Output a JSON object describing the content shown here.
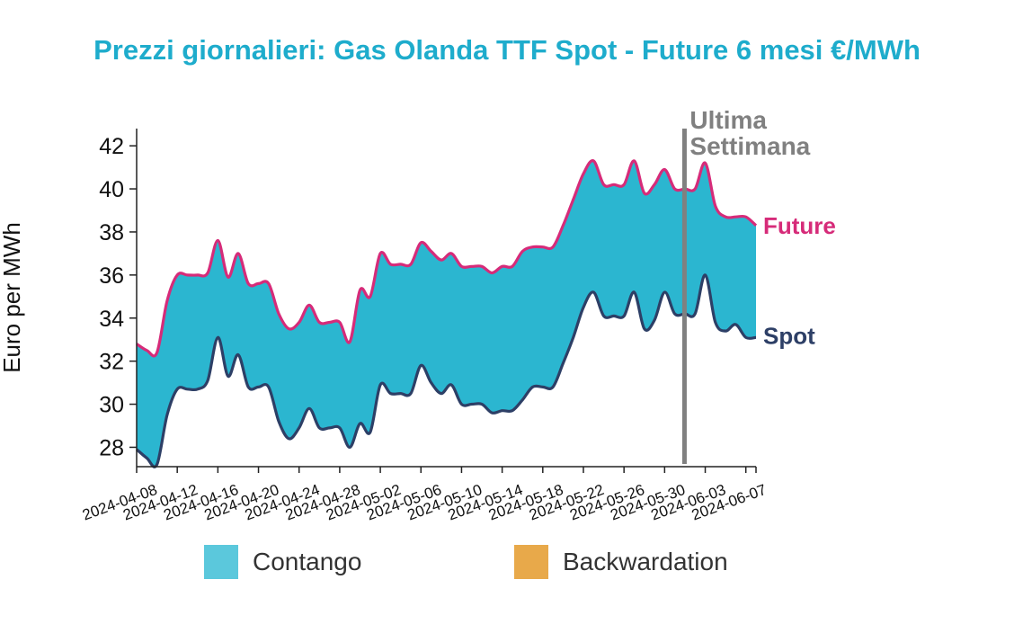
{
  "title": "Prezzi giornalieri: Gas Olanda TTF Spot - Future 6 mesi €/MWh",
  "chart_data": {
    "type": "area",
    "title": "Prezzi giornalieri: Gas Olanda TTF Spot - Future 6 mesi €/MWh",
    "xlabel": "",
    "ylabel": "Euro per MWh",
    "ylim": [
      27.1,
      42.8
    ],
    "xlim": [
      "2024-04-08",
      "2024-06-08"
    ],
    "yticks": [
      28,
      30,
      32,
      34,
      36,
      38,
      40,
      42
    ],
    "xticks": [
      "2024-04-08",
      "2024-04-12",
      "2024-04-16",
      "2024-04-20",
      "2024-04-24",
      "2024-04-28",
      "2024-05-02",
      "2024-05-06",
      "2024-05-10",
      "2024-05-14",
      "2024-05-18",
      "2024-05-22",
      "2024-05-26",
      "2024-05-30",
      "2024-06-03",
      "2024-06-07"
    ],
    "grid": false,
    "legend_placement": "bottom",
    "legend": [
      {
        "label": "Contango",
        "color": "#5bc8dc"
      },
      {
        "label": "Backwardation",
        "color": "#e8a94a"
      }
    ],
    "fill_color": "#2bb6d0",
    "series": [
      {
        "name": "Future",
        "color": "#d62b79",
        "x": [
          "2024-04-08",
          "2024-04-09",
          "2024-04-10",
          "2024-04-11",
          "2024-04-12",
          "2024-04-13",
          "2024-04-14",
          "2024-04-15",
          "2024-04-16",
          "2024-04-17",
          "2024-04-18",
          "2024-04-19",
          "2024-04-20",
          "2024-04-21",
          "2024-04-22",
          "2024-04-23",
          "2024-04-24",
          "2024-04-25",
          "2024-04-26",
          "2024-04-27",
          "2024-04-28",
          "2024-04-29",
          "2024-04-30",
          "2024-05-01",
          "2024-05-02",
          "2024-05-03",
          "2024-05-04",
          "2024-05-05",
          "2024-05-06",
          "2024-05-07",
          "2024-05-08",
          "2024-05-09",
          "2024-05-10",
          "2024-05-11",
          "2024-05-12",
          "2024-05-13",
          "2024-05-14",
          "2024-05-15",
          "2024-05-16",
          "2024-05-17",
          "2024-05-18",
          "2024-05-19",
          "2024-05-20",
          "2024-05-21",
          "2024-05-22",
          "2024-05-23",
          "2024-05-24",
          "2024-05-25",
          "2024-05-26",
          "2024-05-27",
          "2024-05-28",
          "2024-05-29",
          "2024-05-30",
          "2024-05-31",
          "2024-06-01",
          "2024-06-02",
          "2024-06-03",
          "2024-06-04",
          "2024-06-05",
          "2024-06-06",
          "2024-06-07",
          "2024-06-08"
        ],
        "values": [
          32.8,
          32.5,
          32.4,
          34.8,
          36.0,
          36.0,
          36.0,
          36.1,
          37.6,
          35.9,
          37.0,
          35.6,
          35.6,
          35.6,
          34.2,
          33.5,
          33.8,
          34.6,
          33.8,
          33.8,
          33.8,
          32.9,
          35.3,
          35.0,
          37.0,
          36.5,
          36.5,
          36.5,
          37.5,
          37.1,
          36.7,
          37.0,
          36.4,
          36.4,
          36.4,
          36.1,
          36.4,
          36.4,
          37.1,
          37.3,
          37.3,
          37.3,
          38.3,
          39.5,
          40.7,
          41.3,
          40.2,
          40.2,
          40.2,
          41.3,
          39.8,
          40.2,
          40.9,
          40.0,
          40.0,
          40.0,
          41.2,
          39.2,
          38.7,
          38.7,
          38.7,
          38.3
        ]
      },
      {
        "name": "Spot",
        "color": "#2d3f66",
        "x": [
          "2024-04-08",
          "2024-04-09",
          "2024-04-10",
          "2024-04-11",
          "2024-04-12",
          "2024-04-13",
          "2024-04-14",
          "2024-04-15",
          "2024-04-16",
          "2024-04-17",
          "2024-04-18",
          "2024-04-19",
          "2024-04-20",
          "2024-04-21",
          "2024-04-22",
          "2024-04-23",
          "2024-04-24",
          "2024-04-25",
          "2024-04-26",
          "2024-04-27",
          "2024-04-28",
          "2024-04-29",
          "2024-04-30",
          "2024-05-01",
          "2024-05-02",
          "2024-05-03",
          "2024-05-04",
          "2024-05-05",
          "2024-05-06",
          "2024-05-07",
          "2024-05-08",
          "2024-05-09",
          "2024-05-10",
          "2024-05-11",
          "2024-05-12",
          "2024-05-13",
          "2024-05-14",
          "2024-05-15",
          "2024-05-16",
          "2024-05-17",
          "2024-05-18",
          "2024-05-19",
          "2024-05-20",
          "2024-05-21",
          "2024-05-22",
          "2024-05-23",
          "2024-05-24",
          "2024-05-25",
          "2024-05-26",
          "2024-05-27",
          "2024-05-28",
          "2024-05-29",
          "2024-05-30",
          "2024-05-31",
          "2024-06-01",
          "2024-06-02",
          "2024-06-03",
          "2024-06-04",
          "2024-06-05",
          "2024-06-06",
          "2024-06-07",
          "2024-06-08"
        ],
        "values": [
          27.9,
          27.5,
          27.2,
          29.5,
          30.7,
          30.7,
          30.7,
          31.1,
          33.1,
          31.3,
          32.3,
          30.8,
          30.8,
          30.8,
          29.2,
          28.4,
          28.9,
          29.8,
          28.9,
          28.9,
          28.9,
          28.0,
          29.1,
          28.7,
          30.9,
          30.5,
          30.5,
          30.5,
          31.8,
          31.0,
          30.5,
          30.9,
          30.0,
          30.0,
          30.0,
          29.6,
          29.7,
          29.7,
          30.2,
          30.8,
          30.8,
          30.8,
          31.9,
          33.1,
          34.5,
          35.2,
          34.1,
          34.1,
          34.1,
          35.2,
          33.5,
          33.9,
          35.2,
          34.2,
          34.2,
          34.2,
          36.0,
          33.8,
          33.4,
          33.7,
          33.1,
          33.1
        ]
      }
    ],
    "annotations": [
      {
        "text": "Ultima",
        "at": "2024-06-01"
      },
      {
        "text": "Settimana",
        "at": "2024-06-01"
      },
      {
        "text": "Future",
        "series": "Future"
      },
      {
        "text": "Spot",
        "series": "Spot"
      }
    ]
  }
}
